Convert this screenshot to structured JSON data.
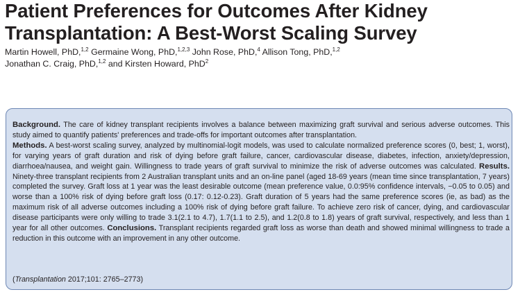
{
  "title": {
    "line1": "Patient Preferences for Outcomes After Kidney",
    "line2": "Transplantation: A Best-Worst Scaling Survey"
  },
  "authors": [
    {
      "name": "Martin Howell, PhD,",
      "aff": "1,2"
    },
    {
      "name": "Germaine Wong, PhD,",
      "aff": "1,2,3"
    },
    {
      "name": "John Rose, PhD,",
      "aff": "4"
    },
    {
      "name": "Allison Tong, PhD,",
      "aff": "1,2"
    },
    {
      "name": "Jonathan C. Craig, PhD,",
      "aff": "1,2"
    },
    {
      "name": "and Kirsten Howard, PhD",
      "aff": "2"
    }
  ],
  "abstract": {
    "background_label": "Background.",
    "background_text": "The care of kidney transplant recipients involves a balance between maximizing graft survival and serious adverse outcomes. This study aimed to quantify patients' preferences and trade-offs for important outcomes after transplantation.",
    "methods_label": "Methods.",
    "methods_text": "A best-worst scaling survey, analyzed by multinomial-logit models, was used to calculate normalized preference scores (0, best; 1, worst), for varying years of graft duration and risk of dying before graft failure, cancer, cardiovascular disease, diabetes, infection, anxiety/depression, diarrhoea/nausea, and weight gain. Willingness to trade years of graft survival to minimize the risk of adverse outcomes was calculated.",
    "results_label": "Results.",
    "results_text": "Ninety-three transplant recipients from 2 Australian transplant units and an on-line panel (aged 18-69 years (mean time since transplantation, 7 years) completed the survey. Graft loss at 1 year was the least desirable outcome (mean preference value, 0.0:95% confidence intervals, −0.05 to 0.05) and worse than a 100% risk of dying before graft loss (0.17: 0.12-0.23). Graft duration of 5 years had the same preference scores (ie, as bad) as the maximum risk of all adverse outcomes including a 100% risk of dying before graft failure. To achieve zero risk of cancer, dying, and cardiovascular disease participants were only willing to trade 3.1(2.1 to 4.7), 1.7(1.1 to 2.5), and 1.2(0.8 to 1.8) years of graft survival, respectively, and less than 1 year for all other outcomes.",
    "conclusions_label": "Conclusions.",
    "conclusions_text": "Transplant recipients regarded graft loss as worse than death and showed minimal willingness to trade a reduction in this outcome with an improvement in any other outcome."
  },
  "citation": {
    "open": "(",
    "journal": "Transplantation",
    "details": " 2017;101: 2765–2773)"
  },
  "colors": {
    "box_fill": "#d5dfef",
    "box_border": "#6d87b4",
    "text": "#231f20"
  }
}
